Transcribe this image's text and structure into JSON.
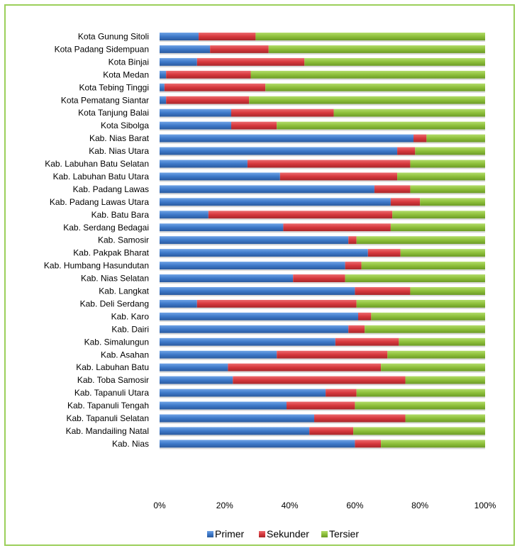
{
  "colors": {
    "primer": "#3d78c8",
    "sekunder": "#d6373c",
    "tersier": "#8dbf3a",
    "border": "#9bcf5a"
  },
  "chart_data": {
    "type": "bar",
    "orientation": "horizontal",
    "stacked": "percent",
    "categories": [
      "Kota Gunung Sitoli",
      "Kota Padang Sidempuan",
      "Kota Binjai",
      "Kota Medan",
      "Kota Tebing Tinggi",
      "Kota Pematang Siantar",
      "Kota Tanjung Balai",
      "Kota Sibolga",
      "Kab. Nias Barat",
      "Kab. Nias Utara",
      "Kab. Labuhan Batu Selatan",
      "Kab. Labuhan Batu Utara",
      "Kab. Padang Lawas",
      "Kab. Padang Lawas Utara",
      "Kab. Batu Bara",
      "Kab. Serdang Bedagai",
      "Kab. Samosir",
      "Kab. Pakpak Bharat",
      "Kab. Humbang Hasundutan",
      "Kab. Nias Selatan",
      "Kab. Langkat",
      "Kab. Deli Serdang",
      "Kab. Karo",
      "Kab. Dairi",
      "Kab. Simalungun",
      "Kab. Asahan",
      "Kab. Labuhan Batu",
      "Kab. Toba Samosir",
      "Kab. Tapanuli Utara",
      "Kab. Tapanuli Tengah",
      "Kab. Tapanuli Selatan",
      "Kab. Mandailing Natal",
      "Kab. Nias"
    ],
    "series": [
      {
        "name": "Primer",
        "values": [
          12,
          15.5,
          11.5,
          2,
          1.5,
          2,
          22,
          22,
          78,
          73,
          27,
          37,
          66,
          71,
          15,
          38,
          58,
          64,
          57,
          41,
          60,
          11.5,
          61,
          58,
          54,
          36,
          21,
          22.5,
          51,
          39,
          47.5,
          46,
          60
        ]
      },
      {
        "name": "Sekunder",
        "values": [
          17.5,
          18,
          33,
          26,
          31,
          25.5,
          31.5,
          14,
          4,
          5.5,
          50,
          36,
          11,
          9,
          56.5,
          33,
          2.5,
          10,
          5,
          16,
          17,
          49,
          4,
          5,
          19.5,
          34,
          47,
          53,
          9.5,
          21,
          28,
          13.5,
          8
        ]
      },
      {
        "name": "Tersier",
        "values": [
          70.5,
          66.5,
          55.5,
          72,
          67.5,
          72.5,
          46.5,
          64,
          18,
          21.5,
          23,
          27,
          23,
          20,
          28.5,
          29,
          39.5,
          26,
          38,
          43,
          23,
          39.5,
          35,
          37,
          26.5,
          30,
          32,
          24.5,
          39.5,
          40,
          24.5,
          40.5,
          32
        ]
      }
    ],
    "x_ticks": [
      "0%",
      "20%",
      "40%",
      "60%",
      "80%",
      "100%"
    ],
    "xlim": [
      0,
      100
    ],
    "title": "",
    "xlabel": "",
    "ylabel": "",
    "legend": {
      "position": "bottom",
      "entries": [
        "Primer",
        "Sekunder",
        "Tersier"
      ]
    }
  }
}
